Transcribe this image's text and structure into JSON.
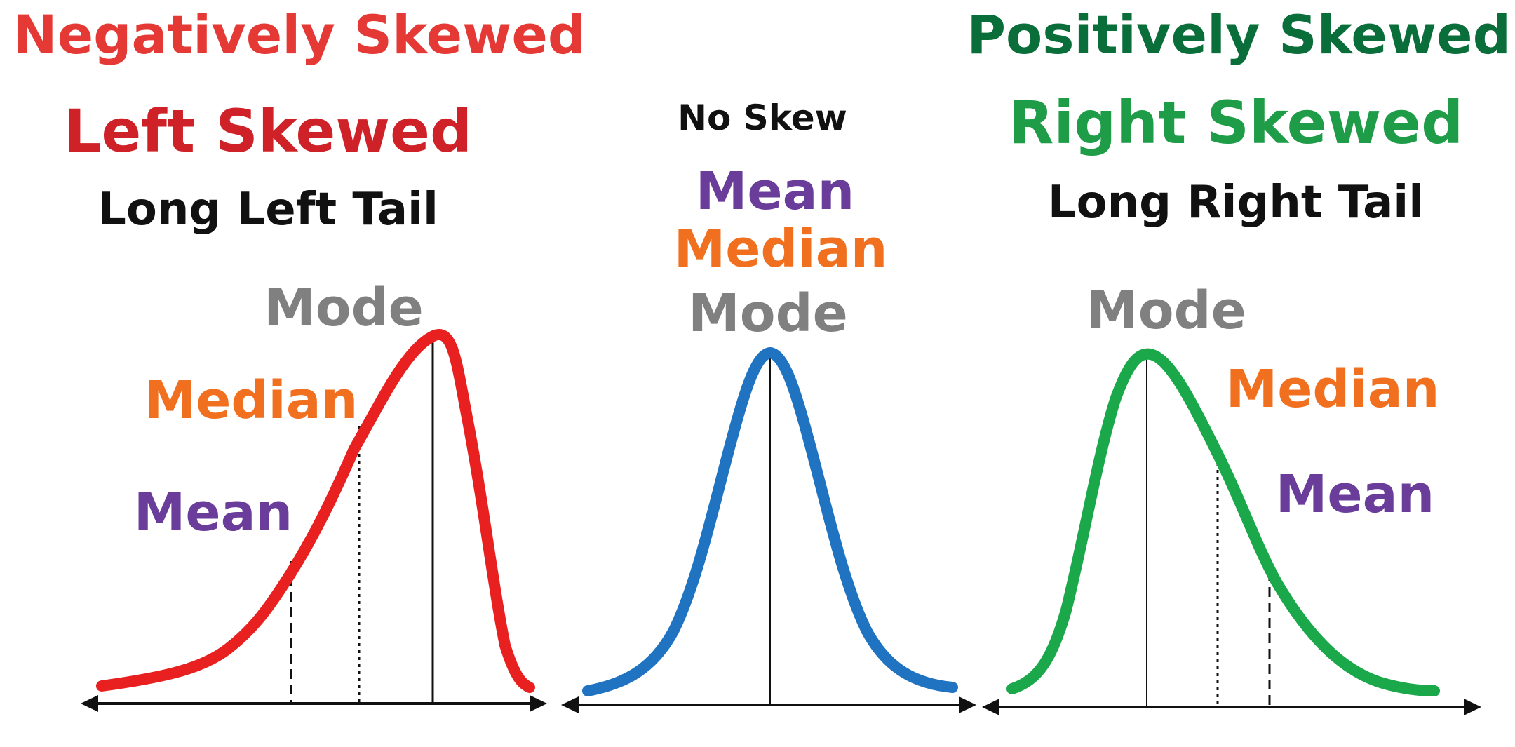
{
  "colors": {
    "negative": "#e53935",
    "positive": "#0a6e3a",
    "left_curve": "#e82020",
    "normal_curve": "#1f73c0",
    "right_curve": "#1aa84a",
    "left_title": "#cf2228",
    "right_title": "#1e9c48",
    "mean": "#6a3d9a",
    "median": "#f07020",
    "mode": "#808080",
    "text": "#111111"
  },
  "headings": {
    "negative": "Negatively Skewed",
    "positive": "Positively Skewed"
  },
  "panels": {
    "left": {
      "title": "Left Skewed",
      "subtitle": "Long Left Tail",
      "mode": "Mode",
      "median": "Median",
      "mean": "Mean"
    },
    "center": {
      "title": "No Skew",
      "mean": "Mean",
      "median": "Median",
      "mode": "Mode"
    },
    "right": {
      "title": "Right Skewed",
      "subtitle": "Long Right Tail",
      "mode": "Mode",
      "median": "Median",
      "mean": "Mean"
    }
  }
}
